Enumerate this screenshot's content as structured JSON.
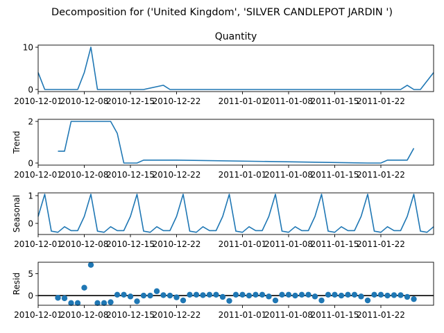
{
  "suptitle": "Decomposition for ('United Kingdom', 'SILVER  CANDLEPOT JARDIN ')",
  "x_tick_labels": [
    "2010-12-01",
    "2010-12-08",
    "2010-12-15",
    "2010-12-22",
    "2011-01-01",
    "2011-01-08",
    "2011-01-15",
    "2011-01-22"
  ],
  "chart_data": [
    {
      "type": "line",
      "title": "Quantity",
      "ylabel": "",
      "x_start": "2010-12-01",
      "x_end": "2011-01-30",
      "xlim": [
        "2010-12-01",
        "2011-01-30"
      ],
      "ylim": [
        -0.5,
        10.5
      ],
      "yticks": [
        0,
        10
      ],
      "x": [
        "2010-12-01",
        "2010-12-02",
        "2010-12-03",
        "2010-12-06",
        "2010-12-07",
        "2010-12-08",
        "2010-12-09",
        "2010-12-10",
        "2010-12-13",
        "2010-12-14",
        "2010-12-15",
        "2010-12-16",
        "2010-12-17",
        "2010-12-20",
        "2010-12-21",
        "2010-12-22",
        "2011-01-04",
        "2011-01-05",
        "2011-01-06",
        "2011-01-07",
        "2011-01-10",
        "2011-01-11",
        "2011-01-12",
        "2011-01-13",
        "2011-01-14",
        "2011-01-17",
        "2011-01-18",
        "2011-01-19",
        "2011-01-20",
        "2011-01-21",
        "2011-01-24",
        "2011-01-25",
        "2011-01-26",
        "2011-01-27",
        "2011-01-28",
        "2011-01-30"
      ],
      "y": [
        4,
        0,
        0,
        0,
        0,
        4,
        10,
        0,
        0,
        0,
        0,
        0,
        0,
        1,
        0,
        0,
        0,
        0,
        0,
        0,
        0,
        0,
        0,
        0,
        0,
        0,
        0,
        0,
        0,
        0,
        0,
        0,
        1,
        0,
        0,
        4
      ],
      "color": "#1f77b4",
      "grid": false
    },
    {
      "type": "line",
      "title": "",
      "ylabel": "Trend",
      "xlim": [
        "2010-12-01",
        "2011-01-30"
      ],
      "ylim": [
        -0.1,
        2.1
      ],
      "yticks": [
        0,
        2
      ],
      "x": [
        "2010-12-04",
        "2010-12-05",
        "2010-12-06",
        "2010-12-07",
        "2010-12-08",
        "2010-12-09",
        "2010-12-10",
        "2010-12-11",
        "2010-12-12",
        "2010-12-13",
        "2010-12-14",
        "2010-12-15",
        "2010-12-16",
        "2010-12-17",
        "2010-12-18",
        "2010-12-19",
        "2010-12-20",
        "2010-12-21",
        "2010-12-22",
        "2011-01-20",
        "2011-01-21",
        "2011-01-22",
        "2011-01-23",
        "2011-01-24",
        "2011-01-25",
        "2011-01-26",
        "2011-01-27"
      ],
      "y": [
        0.57,
        0.57,
        2,
        2,
        2,
        2,
        2,
        2,
        2,
        1.43,
        0,
        0,
        0,
        0.14,
        0.14,
        0.14,
        0.14,
        0.14,
        0.14,
        0,
        0,
        0,
        0.14,
        0.14,
        0.14,
        0.14,
        0.71
      ],
      "color": "#1f77b4",
      "grid": false
    },
    {
      "type": "line",
      "title": "",
      "ylabel": "Seasonal",
      "xlim": [
        "2010-12-01",
        "2011-01-30"
      ],
      "ylim": [
        -0.4,
        1.1
      ],
      "yticks": [
        0,
        1
      ],
      "pattern_period_days": 7,
      "pattern_values": [
        0.25,
        1.05,
        -0.28,
        -0.32,
        -0.12,
        -0.26,
        -0.26
      ],
      "color": "#1f77b4",
      "grid": false
    },
    {
      "type": "scatter",
      "title": "",
      "ylabel": "Resid",
      "xlim": [
        "2010-12-01",
        "2011-01-30"
      ],
      "ylim": [
        -2.2,
        7.6
      ],
      "yticks": [
        0,
        5
      ],
      "zero_line": true,
      "x": [
        "2010-12-04",
        "2010-12-05",
        "2010-12-06",
        "2010-12-07",
        "2010-12-08",
        "2010-12-09",
        "2010-12-10",
        "2010-12-11",
        "2010-12-12",
        "2010-12-13",
        "2010-12-14",
        "2010-12-15",
        "2010-12-16",
        "2010-12-17",
        "2010-12-18",
        "2010-12-19",
        "2010-12-20",
        "2010-12-21",
        "2010-12-22",
        "2010-12-23",
        "2010-12-24",
        "2010-12-25",
        "2010-12-26",
        "2010-12-27",
        "2010-12-28",
        "2010-12-29",
        "2010-12-30",
        "2010-12-31",
        "2011-01-01",
        "2011-01-02",
        "2011-01-03",
        "2011-01-04",
        "2011-01-05",
        "2011-01-06",
        "2011-01-07",
        "2011-01-08",
        "2011-01-09",
        "2011-01-10",
        "2011-01-11",
        "2011-01-12",
        "2011-01-13",
        "2011-01-14",
        "2011-01-15",
        "2011-01-16",
        "2011-01-17",
        "2011-01-18",
        "2011-01-19",
        "2011-01-20",
        "2011-01-21",
        "2011-01-22",
        "2011-01-23",
        "2011-01-24",
        "2011-01-25",
        "2011-01-26",
        "2011-01-27"
      ],
      "y": [
        -0.5,
        -0.6,
        -1.7,
        -1.7,
        1.8,
        7.0,
        -1.7,
        -1.7,
        -1.5,
        0.2,
        0.2,
        -0.2,
        -1.3,
        0.0,
        0.0,
        1.0,
        0.1,
        0.0,
        -0.4,
        -1.1,
        0.2,
        0.2,
        0.1,
        0.2,
        0.2,
        -0.3,
        -1.2,
        0.2,
        0.2,
        0.0,
        0.2,
        0.2,
        -0.2,
        -1.1,
        0.2,
        0.2,
        0.0,
        0.2,
        0.2,
        -0.2,
        -1.1,
        0.2,
        0.2,
        0.0,
        0.2,
        0.2,
        -0.2,
        -1.1,
        0.2,
        0.2,
        0.0,
        0.1,
        0.1,
        -0.3,
        -0.8
      ],
      "color": "#1f77b4",
      "grid": false
    }
  ]
}
